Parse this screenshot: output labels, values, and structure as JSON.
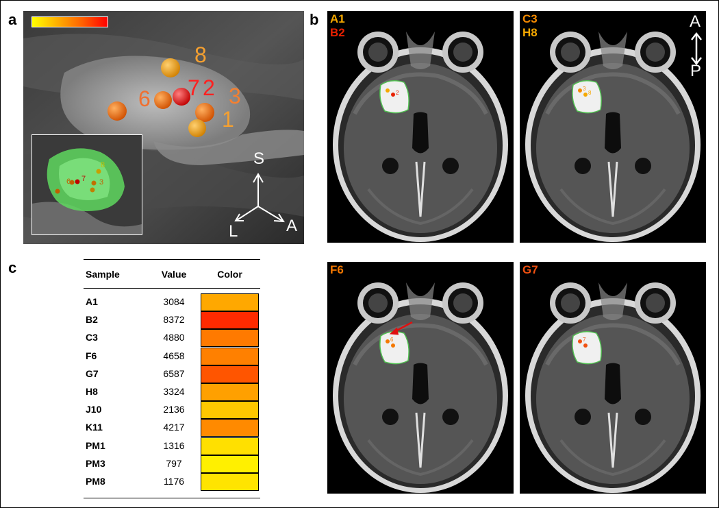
{
  "panels": {
    "a": "a",
    "b": "b",
    "c": "c"
  },
  "panel_a": {
    "sample_labels": [
      "8",
      "6",
      "7",
      "2",
      "3",
      "1"
    ],
    "inset_labels": [
      "8",
      "6",
      "7",
      "3"
    ],
    "axes": {
      "s": "S",
      "l": "L",
      "a": "A"
    }
  },
  "panel_b": {
    "images": [
      {
        "line1": "A1",
        "line2": "B2",
        "c1": "#f5a800",
        "c2": "#e82000",
        "mark1": "",
        "mark2": "2"
      },
      {
        "line1": "C3",
        "line2": "H8",
        "c1": "#f58a00",
        "c2": "#f5a800",
        "mark1": "3",
        "mark2": "8"
      },
      {
        "line1": "F6",
        "line2": "",
        "c1": "#f57800",
        "c2": "#f57800",
        "mark1": "6",
        "mark2": ""
      },
      {
        "line1": "G7",
        "line2": "",
        "c1": "#f05010",
        "c2": "#f05010",
        "mark1": "7",
        "mark2": ""
      }
    ],
    "orientation": {
      "a": "A",
      "p": "P"
    }
  },
  "table": {
    "headers": {
      "sample": "Sample",
      "value": "Value",
      "color": "Color"
    },
    "rows": [
      {
        "sample": "A1",
        "value": "3084",
        "color": "#ffa800"
      },
      {
        "sample": "B2",
        "value": "8372",
        "color": "#ff2a00"
      },
      {
        "sample": "C3",
        "value": "4880",
        "color": "#ff7a00"
      },
      {
        "sample": "F6",
        "value": "4658",
        "color": "#ff8000"
      },
      {
        "sample": "G7",
        "value": "6587",
        "color": "#ff5500"
      },
      {
        "sample": "H8",
        "value": "3324",
        "color": "#ffa000"
      },
      {
        "sample": "J10",
        "value": "2136",
        "color": "#ffc800"
      },
      {
        "sample": "K11",
        "value": "4217",
        "color": "#ff8a00"
      },
      {
        "sample": "PM1",
        "value": "1316",
        "color": "#ffe000"
      },
      {
        "sample": "PM3",
        "value": "797",
        "color": "#fff000"
      },
      {
        "sample": "PM8",
        "value": "1176",
        "color": "#ffe400"
      }
    ]
  }
}
